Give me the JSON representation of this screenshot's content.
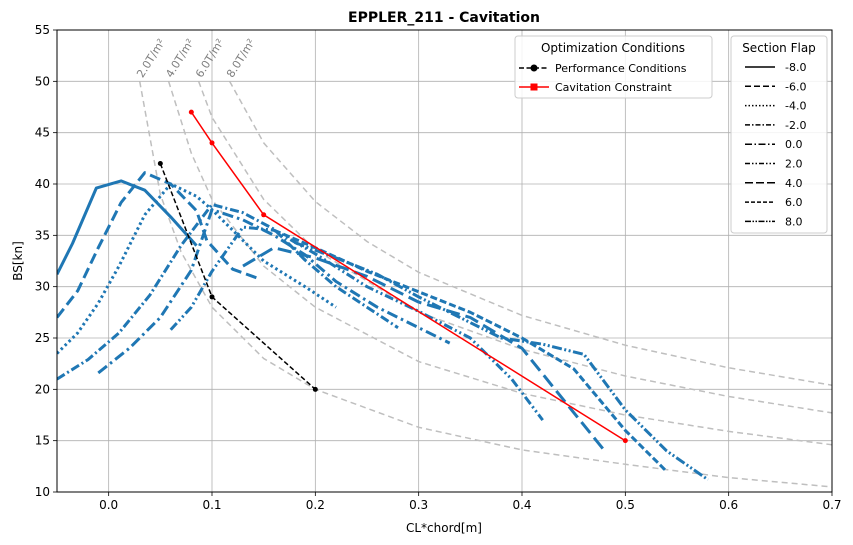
{
  "chart_data": {
    "type": "line",
    "title": "EPPLER_211 - Cavitation",
    "xlabel": "CL*chord[m]",
    "ylabel": "BS[kn]",
    "xlim": [
      -0.05,
      0.7
    ],
    "ylim": [
      10,
      55
    ],
    "xticks": [
      "0.0",
      "0.1",
      "0.2",
      "0.3",
      "0.4",
      "0.5",
      "0.6",
      "0.7"
    ],
    "xtick_values": [
      0.0,
      0.1,
      0.2,
      0.3,
      0.4,
      0.5,
      0.6,
      0.7
    ],
    "yticks": [
      "10",
      "15",
      "20",
      "25",
      "30",
      "35",
      "40",
      "45",
      "50",
      "55"
    ],
    "ytick_values": [
      10,
      15,
      20,
      25,
      30,
      35,
      40,
      45,
      50,
      55
    ],
    "grid": true,
    "colors": {
      "flap": "#1f77b4",
      "performance": "#000000",
      "cavitation": "#ff0000",
      "iso": "#bfbfbf"
    },
    "iso_lines": [
      {
        "label": "2.0T/m²",
        "x": [
          0.03,
          0.05,
          0.07,
          0.1,
          0.15,
          0.2,
          0.3,
          0.4,
          0.5,
          0.6,
          0.7
        ],
        "y": [
          50.0,
          39.0,
          33.4,
          28.0,
          23.0,
          20.0,
          16.3,
          14.1,
          12.7,
          11.4,
          10.5
        ]
      },
      {
        "label": "4.0T/m²",
        "x": [
          0.058,
          0.08,
          0.1,
          0.15,
          0.2,
          0.3,
          0.4,
          0.5,
          0.6,
          0.7
        ],
        "y": [
          50.0,
          43.0,
          38.5,
          32.0,
          28.0,
          22.7,
          19.6,
          17.5,
          15.9,
          14.6
        ]
      },
      {
        "label": "6.0T/m²",
        "x": [
          0.087,
          0.1,
          0.15,
          0.2,
          0.3,
          0.4,
          0.5,
          0.6,
          0.7
        ],
        "y": [
          50.0,
          46.5,
          38.5,
          33.6,
          27.5,
          23.9,
          21.3,
          19.3,
          17.7
        ]
      },
      {
        "label": "8.0T/m²",
        "x": [
          0.117,
          0.15,
          0.2,
          0.25,
          0.3,
          0.4,
          0.5,
          0.6,
          0.7
        ],
        "y": [
          50.0,
          44.0,
          38.3,
          34.4,
          31.4,
          27.2,
          24.3,
          22.1,
          20.4
        ]
      }
    ],
    "series": [
      {
        "name": "-8.0",
        "style": "solid",
        "x": [
          -0.05,
          -0.035,
          -0.012,
          0.012,
          0.035,
          0.06,
          0.085
        ],
        "y": [
          31.2,
          34.2,
          39.6,
          40.3,
          39.4,
          36.8,
          34.0
        ]
      },
      {
        "name": "-6.0",
        "style": "dashed",
        "x": [
          -0.05,
          -0.03,
          -0.01,
          0.012,
          0.035,
          0.06,
          0.085,
          0.095,
          0.12,
          0.145
        ],
        "y": [
          27.0,
          29.6,
          33.8,
          38.2,
          41.1,
          40.0,
          37.4,
          34.5,
          31.7,
          30.8
        ]
      },
      {
        "name": "-4.0",
        "style": "dotted",
        "x": [
          -0.05,
          -0.03,
          -0.01,
          0.01,
          0.035,
          0.06,
          0.085,
          0.1,
          0.12,
          0.15,
          0.19,
          0.22
        ],
        "y": [
          23.5,
          25.5,
          28.4,
          32.0,
          37.0,
          40.0,
          38.8,
          37.5,
          35.5,
          32.5,
          30.0,
          28.0
        ]
      },
      {
        "name": "-2.0",
        "style": "dashdot-dense",
        "x": [
          -0.05,
          -0.02,
          0.01,
          0.04,
          0.07,
          0.1,
          0.13,
          0.16,
          0.19,
          0.22,
          0.25,
          0.28
        ],
        "y": [
          21.0,
          22.9,
          25.5,
          29.2,
          34.0,
          38.0,
          37.2,
          35.6,
          32.6,
          30.0,
          28.0,
          26.0
        ]
      },
      {
        "name": "0.0",
        "style": "dashdot",
        "x": [
          -0.01,
          0.02,
          0.05,
          0.08,
          0.1,
          0.13,
          0.16,
          0.19,
          0.22,
          0.26,
          0.3,
          0.33
        ],
        "y": [
          21.6,
          24.0,
          27.0,
          31.6,
          37.5,
          36.5,
          35.0,
          33.1,
          30.5,
          28.0,
          26.0,
          24.5
        ]
      },
      {
        "name": "2.0",
        "style": "dashdotdot",
        "x": [
          0.06,
          0.08,
          0.1,
          0.13,
          0.16,
          0.2,
          0.25,
          0.3,
          0.35,
          0.39,
          0.42
        ],
        "y": [
          25.8,
          28.0,
          31.5,
          35.8,
          35.5,
          33.2,
          30.0,
          27.6,
          25.0,
          21.0,
          17.0
        ]
      },
      {
        "name": "4.0",
        "style": "dashed-loose",
        "x": [
          0.13,
          0.16,
          0.2,
          0.25,
          0.3,
          0.35,
          0.4,
          0.44,
          0.48
        ],
        "y": [
          32.0,
          33.8,
          32.8,
          31.0,
          28.5,
          27.0,
          24.0,
          19.0,
          14.0
        ]
      },
      {
        "name": "6.0",
        "style": "dashed-dense",
        "x": [
          0.16,
          0.2,
          0.25,
          0.3,
          0.35,
          0.4,
          0.45,
          0.5,
          0.54
        ],
        "y": [
          35.5,
          33.8,
          31.5,
          29.5,
          27.5,
          25.0,
          22.0,
          16.0,
          12.0
        ]
      },
      {
        "name": "8.0",
        "style": "dashdotdot-dense",
        "x": [
          0.18,
          0.22,
          0.26,
          0.3,
          0.34,
          0.38,
          0.42,
          0.46,
          0.5,
          0.54,
          0.58
        ],
        "y": [
          34.3,
          32.8,
          31.2,
          29.0,
          27.0,
          25.0,
          24.4,
          23.4,
          18.0,
          14.0,
          11.2
        ]
      }
    ],
    "performance_conditions": {
      "x": [
        0.05,
        0.1,
        0.2
      ],
      "y": [
        42.0,
        29.0,
        20.0
      ]
    },
    "cavitation_constraint": {
      "x": [
        0.08,
        0.1,
        0.15,
        0.5
      ],
      "y": [
        47.0,
        44.0,
        37.0,
        15.0
      ]
    },
    "legend_optimization": {
      "title": "Optimization Conditions",
      "placement": "top-right",
      "entries": [
        "Performance Conditions",
        "Cavitation Constraint"
      ]
    },
    "legend_flap": {
      "title": "Section Flap",
      "placement": "top-right",
      "entries": [
        "-8.0",
        "-6.0",
        "-4.0",
        "-2.0",
        "0.0",
        "2.0",
        "4.0",
        "6.0",
        "8.0"
      ]
    }
  }
}
